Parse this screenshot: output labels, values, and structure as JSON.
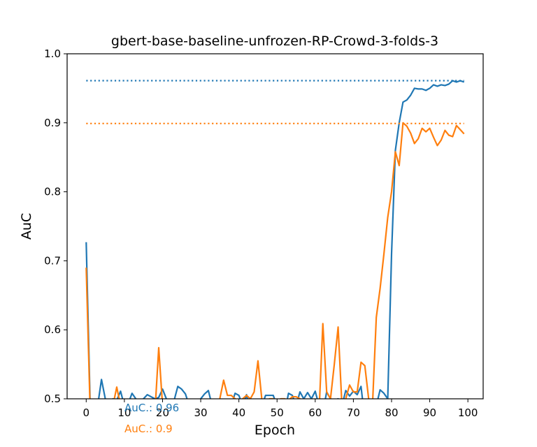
{
  "chart_data": {
    "type": "line",
    "title": "gbert-base-baseline-unfrozen-RP-Crowd-3-folds-3",
    "xlabel": "Epoch",
    "ylabel": "AuC",
    "xlim": [
      -5,
      104
    ],
    "ylim": [
      0.5,
      1.0
    ],
    "xticks": [
      0,
      10,
      20,
      30,
      40,
      50,
      60,
      70,
      80,
      90,
      100
    ],
    "yticks": [
      0.5,
      0.6,
      0.7,
      0.8,
      0.9,
      1.0
    ],
    "xtick_labels": [
      "0",
      "10",
      "20",
      "30",
      "40",
      "50",
      "60",
      "70",
      "80",
      "90",
      "100"
    ],
    "ytick_labels": [
      "0.5",
      "0.6",
      "0.7",
      "0.8",
      "0.9",
      "1.0"
    ],
    "grid": false,
    "series": [
      {
        "color": "#1f77b4",
        "x": [
          0,
          1,
          2,
          3,
          4,
          5,
          6,
          7,
          8,
          9,
          10,
          11,
          12,
          13,
          14,
          15,
          16,
          17,
          18,
          19,
          20,
          21,
          22,
          23,
          24,
          25,
          26,
          27,
          28,
          29,
          30,
          31,
          32,
          33,
          34,
          35,
          36,
          37,
          38,
          39,
          40,
          41,
          42,
          43,
          44,
          45,
          46,
          47,
          48,
          49,
          50,
          51,
          52,
          53,
          54,
          55,
          56,
          57,
          58,
          59,
          60,
          61,
          62,
          63,
          64,
          65,
          66,
          67,
          68,
          69,
          70,
          71,
          72,
          73,
          74,
          75,
          76,
          77,
          78,
          79,
          80,
          81,
          82,
          83,
          84,
          85,
          86,
          87,
          88,
          89,
          90,
          91,
          92,
          93,
          94,
          95,
          96,
          97,
          98,
          99
        ],
        "values": [
          0.727,
          0.5,
          0.495,
          0.49,
          0.528,
          0.5,
          0.492,
          0.5,
          0.498,
          0.511,
          0.49,
          0.493,
          0.508,
          0.5,
          0.495,
          0.5,
          0.506,
          0.503,
          0.5,
          0.502,
          0.514,
          0.5,
          0.49,
          0.497,
          0.518,
          0.514,
          0.507,
          0.49,
          0.47,
          0.493,
          0.5,
          0.507,
          0.512,
          0.49,
          0.48,
          0.49,
          0.497,
          0.497,
          0.49,
          0.508,
          0.505,
          0.49,
          0.506,
          0.48,
          0.47,
          0.48,
          0.49,
          0.505,
          0.505,
          0.505,
          0.49,
          0.47,
          0.48,
          0.508,
          0.505,
          0.49,
          0.51,
          0.5,
          0.509,
          0.5,
          0.511,
          0.49,
          0.48,
          0.51,
          0.5,
          0.498,
          0.5,
          0.49,
          0.512,
          0.504,
          0.511,
          0.506,
          0.518,
          0.47,
          0.46,
          0.48,
          0.49,
          0.513,
          0.508,
          0.5,
          0.71,
          0.86,
          0.9,
          0.93,
          0.933,
          0.94,
          0.95,
          0.949,
          0.949,
          0.947,
          0.95,
          0.955,
          0.953,
          0.955,
          0.954,
          0.956,
          0.961,
          0.959,
          0.961,
          0.959
        ],
        "hline": 0.961,
        "annotation": "AuC.: 0.96"
      },
      {
        "color": "#ff7f0e",
        "x": [
          0,
          1,
          2,
          3,
          4,
          5,
          6,
          7,
          8,
          9,
          10,
          11,
          12,
          13,
          14,
          15,
          16,
          17,
          18,
          19,
          20,
          21,
          22,
          23,
          24,
          25,
          26,
          27,
          28,
          29,
          30,
          31,
          32,
          33,
          34,
          35,
          36,
          37,
          38,
          39,
          40,
          41,
          42,
          43,
          44,
          45,
          46,
          47,
          48,
          49,
          50,
          51,
          52,
          53,
          54,
          55,
          56,
          57,
          58,
          59,
          60,
          61,
          62,
          63,
          64,
          65,
          66,
          67,
          68,
          69,
          70,
          71,
          72,
          73,
          74,
          75,
          76,
          77,
          78,
          79,
          80,
          81,
          82,
          83,
          84,
          85,
          86,
          87,
          88,
          89,
          90,
          91,
          92,
          93,
          94,
          95,
          96,
          97,
          98,
          99
        ],
        "values": [
          0.69,
          0.49,
          0.47,
          0.48,
          0.47,
          0.46,
          0.48,
          0.49,
          0.517,
          0.49,
          0.48,
          0.47,
          0.49,
          0.47,
          0.48,
          0.49,
          0.47,
          0.49,
          0.48,
          0.574,
          0.49,
          0.47,
          0.48,
          0.49,
          0.47,
          0.49,
          0.48,
          0.47,
          0.49,
          0.48,
          0.47,
          0.49,
          0.48,
          0.47,
          0.49,
          0.5,
          0.527,
          0.505,
          0.505,
          0.5,
          0.497,
          0.5,
          0.505,
          0.5,
          0.51,
          0.555,
          0.5,
          0.49,
          0.5,
          0.5,
          0.498,
          0.5,
          0.5,
          0.498,
          0.503,
          0.503,
          0.5,
          0.49,
          0.48,
          0.497,
          0.49,
          0.48,
          0.609,
          0.51,
          0.5,
          0.55,
          0.604,
          0.49,
          0.5,
          0.52,
          0.51,
          0.51,
          0.553,
          0.548,
          0.5,
          0.49,
          0.618,
          0.66,
          0.71,
          0.763,
          0.8,
          0.858,
          0.838,
          0.9,
          0.895,
          0.885,
          0.87,
          0.877,
          0.892,
          0.887,
          0.892,
          0.879,
          0.867,
          0.875,
          0.889,
          0.882,
          0.88,
          0.896,
          0.89,
          0.884
        ],
        "hline": 0.899,
        "annotation": "AuC.: 0.9"
      }
    ]
  }
}
